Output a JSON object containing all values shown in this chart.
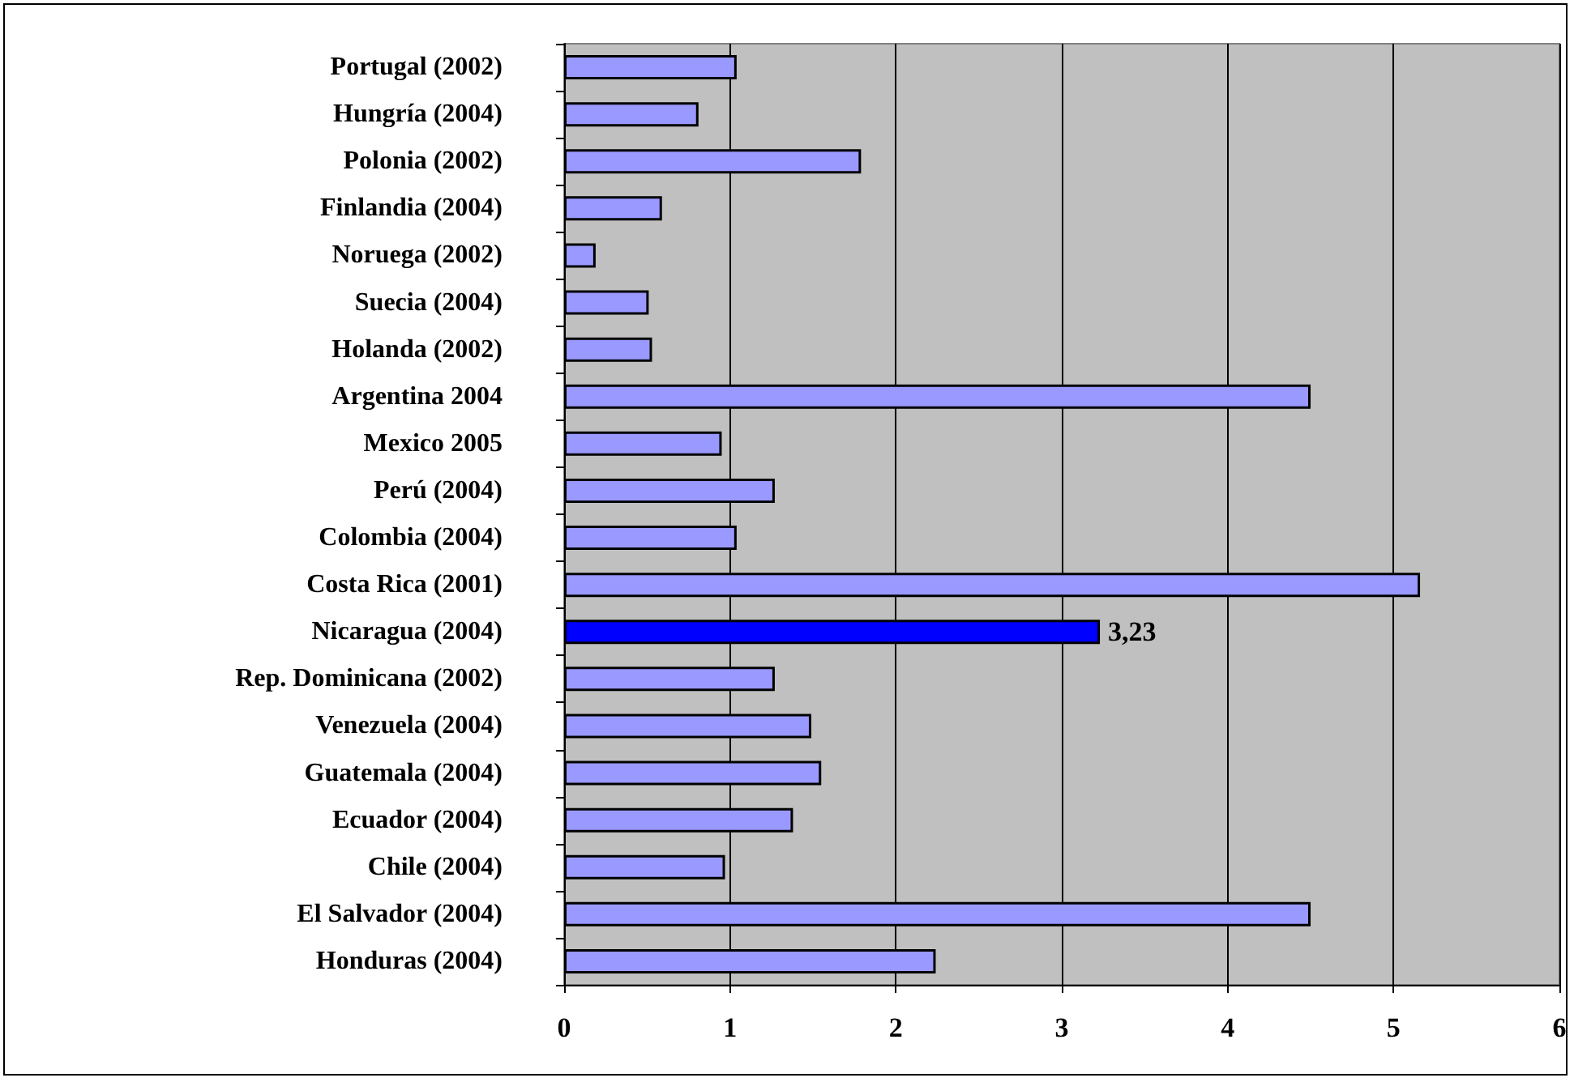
{
  "chart_data": {
    "type": "bar",
    "orientation": "horizontal",
    "categories": [
      "Portugal (2002)",
      "Hungría (2004)",
      "Polonia (2002)",
      "Finlandia (2004)",
      "Noruega (2002)",
      "Suecia (2004)",
      "Holanda (2002)",
      "Argentina 2004",
      "Mexico 2005",
      "Perú (2004)",
      "Colombia (2004)",
      "Costa Rica (2001)",
      "Nicaragua (2004)",
      "Rep. Dominicana (2002)",
      "Venezuela (2004)",
      "Guatemala (2004)",
      "Ecuador (2004)",
      "Chile (2004)",
      "El Salvador (2004)",
      "Honduras (2004)"
    ],
    "values": [
      1.04,
      0.81,
      1.79,
      0.59,
      0.19,
      0.51,
      0.53,
      4.5,
      0.95,
      1.27,
      1.04,
      5.16,
      3.23,
      1.27,
      1.49,
      1.55,
      1.38,
      0.97,
      4.5,
      2.24
    ],
    "colors": [
      "#9999ff",
      "#9999ff",
      "#9999ff",
      "#9999ff",
      "#9999ff",
      "#9999ff",
      "#9999ff",
      "#9999ff",
      "#9999ff",
      "#9999ff",
      "#9999ff",
      "#9999ff",
      "#0000ff",
      "#9999ff",
      "#9999ff",
      "#9999ff",
      "#9999ff",
      "#9999ff",
      "#9999ff",
      "#9999ff"
    ],
    "value_labels": [
      null,
      null,
      null,
      null,
      null,
      null,
      null,
      null,
      null,
      null,
      null,
      null,
      "3,23",
      null,
      null,
      null,
      null,
      null,
      null,
      null
    ],
    "xlim": [
      0,
      6
    ],
    "xticks": [
      0,
      1,
      2,
      3,
      4,
      5,
      6
    ],
    "grid": "x"
  }
}
